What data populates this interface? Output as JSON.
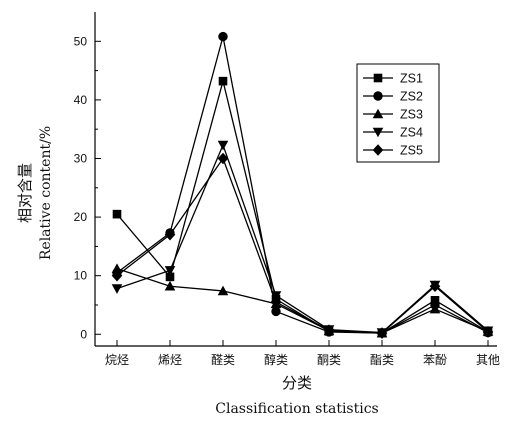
{
  "chart_data": {
    "type": "line",
    "categories": [
      "烷烃",
      "烯烃",
      "醛类",
      "醇类",
      "酮类",
      "酯类",
      "苯酚",
      "其他"
    ],
    "xlabel_cn": "分类",
    "xlabel_en": "Classification statistics",
    "ylabel_cn": "相对含量",
    "ylabel_en": "Relative content/%",
    "ylim": [
      -2,
      55
    ],
    "yticks": [
      0,
      10,
      20,
      30,
      40,
      50
    ],
    "legend_position": "top-right",
    "grid": false,
    "series": [
      {
        "name": "ZS1",
        "marker": "square",
        "values": [
          20.5,
          9.8,
          43.2,
          6.0,
          0.5,
          0.2,
          5.8,
          0.4
        ]
      },
      {
        "name": "ZS2",
        "marker": "circle",
        "values": [
          10.5,
          17.3,
          50.8,
          3.9,
          0.4,
          0.2,
          5.0,
          0.3
        ]
      },
      {
        "name": "ZS3",
        "marker": "triangle-up",
        "values": [
          11.2,
          8.2,
          7.4,
          5.2,
          0.6,
          0.2,
          4.3,
          0.5
        ]
      },
      {
        "name": "ZS4",
        "marker": "triangle-down",
        "values": [
          7.8,
          10.9,
          32.3,
          6.6,
          0.8,
          0.3,
          8.4,
          0.6
        ]
      },
      {
        "name": "ZS5",
        "marker": "diamond",
        "values": [
          10.0,
          17.0,
          30.0,
          5.5,
          0.7,
          0.2,
          8.2,
          0.4
        ]
      }
    ]
  }
}
